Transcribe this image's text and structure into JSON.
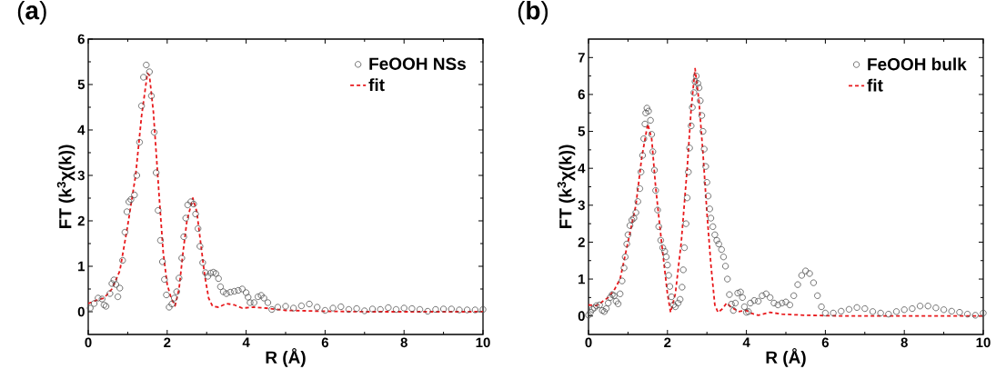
{
  "chart_data": [
    {
      "type": "scatter",
      "title": "(**a**)",
      "xlabel": "R (Å)",
      "ylabel": "FT (k$^{3}$χ(k))",
      "xlim": [
        0,
        10
      ],
      "ylim": [
        -0.5,
        6
      ],
      "xticks": [
        0,
        2,
        4,
        6,
        8,
        10
      ],
      "yticks": [
        0,
        1,
        2,
        3,
        4,
        5,
        6
      ],
      "legend": "top right",
      "series": [
        {
          "name": "FeOOH NSs",
          "marker": "circle",
          "color": "#505050",
          "x": [
            0.05,
            0.15,
            0.25,
            0.35,
            0.4,
            0.45,
            0.55,
            0.6,
            0.65,
            0.7,
            0.75,
            0.8,
            0.87,
            0.93,
            0.98,
            1.03,
            1.08,
            1.17,
            1.23,
            1.3,
            1.35,
            1.4,
            1.47,
            1.55,
            1.6,
            1.67,
            1.72,
            1.77,
            1.83,
            1.88,
            1.93,
            1.98,
            2.05,
            2.12,
            2.18,
            2.24,
            2.3,
            2.37,
            2.42,
            2.47,
            2.52,
            2.6,
            2.67,
            2.72,
            2.78,
            2.83,
            2.9,
            2.97,
            3.03,
            3.1,
            3.17,
            3.23,
            3.3,
            3.35,
            3.42,
            3.5,
            3.6,
            3.7,
            3.8,
            3.9,
            4.0,
            4.05,
            4.1,
            4.2,
            4.3,
            4.38,
            4.45,
            4.55,
            4.65,
            4.8,
            5.0,
            5.2,
            5.4,
            5.6,
            5.8,
            6.0,
            6.2,
            6.4,
            6.6,
            6.8,
            7.0,
            7.2,
            7.4,
            7.6,
            7.8,
            8.0,
            8.2,
            8.4,
            8.6,
            8.8,
            9.0,
            9.2,
            9.4,
            9.6,
            9.8,
            10.0
          ],
          "values": [
            0.08,
            0.18,
            0.3,
            0.28,
            0.15,
            0.12,
            0.4,
            0.62,
            0.7,
            0.6,
            0.33,
            0.52,
            1.13,
            1.75,
            2.2,
            2.42,
            2.47,
            2.57,
            3.0,
            3.73,
            4.53,
            5.16,
            5.43,
            5.28,
            4.75,
            3.95,
            3.06,
            2.23,
            1.57,
            1.1,
            0.71,
            0.37,
            0.1,
            0.17,
            0.3,
            0.44,
            0.74,
            1.18,
            1.65,
            2.06,
            2.35,
            2.42,
            2.37,
            2.15,
            1.83,
            1.44,
            1.08,
            0.86,
            0.78,
            0.85,
            0.87,
            0.84,
            0.73,
            0.55,
            0.44,
            0.4,
            0.43,
            0.45,
            0.47,
            0.5,
            0.42,
            0.32,
            0.2,
            0.2,
            0.33,
            0.36,
            0.3,
            0.2,
            0.05,
            0.1,
            0.12,
            0.08,
            0.13,
            0.17,
            0.1,
            0.03,
            0.08,
            0.11,
            0.05,
            0.07,
            0.02,
            0.06,
            0.05,
            0.09,
            0.05,
            0.08,
            0.07,
            0.05,
            0.01,
            0.05,
            0.06,
            0.06,
            0.04,
            0.04,
            0.04,
            0.05
          ]
        },
        {
          "name": "fit",
          "type": "line",
          "marker": "none",
          "line_style": "dashed",
          "color": "#e8191c",
          "x": [
            0,
            0.2,
            0.4,
            0.6,
            0.8,
            1.0,
            1.2,
            1.35,
            1.5,
            1.55,
            1.65,
            1.8,
            1.9,
            2.0,
            2.1,
            2.2,
            2.3,
            2.4,
            2.5,
            2.65,
            2.75,
            2.85,
            2.95,
            3.05,
            3.15,
            3.3,
            3.5,
            3.7,
            3.9,
            4.2,
            4.5,
            5.0,
            6,
            7,
            8,
            9,
            10
          ],
          "values": [
            0.18,
            0.25,
            0.3,
            0.5,
            0.9,
            1.9,
            3.0,
            4.3,
            5.25,
            5.2,
            4.4,
            2.5,
            1.3,
            0.6,
            0.3,
            0.13,
            0.5,
            1.3,
            2.0,
            2.5,
            2.2,
            1.5,
            0.8,
            0.3,
            0.12,
            0.1,
            0.18,
            0.15,
            0.08,
            0.1,
            0.08,
            0.03,
            0.01,
            0.0,
            0.0,
            0.0,
            0.0
          ]
        }
      ]
    },
    {
      "type": "scatter",
      "title": "(**b**)",
      "xlabel": "R (Å)",
      "ylabel": "FT (k$^{3}$χ(k))",
      "xlim": [
        0,
        10
      ],
      "ylim": [
        -0.5,
        7.5
      ],
      "xticks": [
        0,
        2,
        4,
        6,
        8,
        10
      ],
      "yticks": [
        0,
        1,
        2,
        3,
        4,
        5,
        6,
        7
      ],
      "legend": "top right",
      "series": [
        {
          "name": "FeOOH bulk",
          "marker": "circle",
          "color": "#505050",
          "x": [
            0.0,
            0.05,
            0.1,
            0.15,
            0.2,
            0.28,
            0.35,
            0.4,
            0.45,
            0.5,
            0.55,
            0.6,
            0.65,
            0.7,
            0.75,
            0.8,
            0.85,
            0.9,
            0.93,
            0.97,
            1.0,
            1.05,
            1.1,
            1.15,
            1.2,
            1.25,
            1.3,
            1.33,
            1.37,
            1.4,
            1.43,
            1.45,
            1.48,
            1.52,
            1.57,
            1.6,
            1.63,
            1.67,
            1.7,
            1.75,
            1.78,
            1.83,
            1.88,
            1.93,
            1.97,
            2.0,
            2.03,
            2.06,
            2.1,
            2.15,
            2.2,
            2.27,
            2.32,
            2.37,
            2.4,
            2.43,
            2.47,
            2.5,
            2.53,
            2.56,
            2.6,
            2.63,
            2.67,
            2.7,
            2.73,
            2.77,
            2.8,
            2.83,
            2.87,
            2.9,
            2.93,
            2.97,
            3.0,
            3.03,
            3.07,
            3.1,
            3.15,
            3.2,
            3.25,
            3.3,
            3.37,
            3.42,
            3.47,
            3.52,
            3.57,
            3.62,
            3.67,
            3.72,
            3.78,
            3.85,
            3.9,
            3.95,
            4.0,
            4.05,
            4.1,
            4.2,
            4.3,
            4.4,
            4.5,
            4.6,
            4.7,
            4.8,
            4.9,
            5.0,
            5.1,
            5.2,
            5.3,
            5.4,
            5.5,
            5.6,
            5.7,
            5.8,
            5.9,
            6.0,
            6.2,
            6.4,
            6.6,
            6.8,
            7.0,
            7.2,
            7.4,
            7.6,
            7.8,
            8.0,
            8.2,
            8.4,
            8.6,
            8.8,
            9.0,
            9.2,
            9.4,
            9.6,
            9.8,
            10.0
          ],
          "values": [
            0.02,
            0.1,
            0.18,
            0.22,
            0.28,
            0.3,
            0.15,
            0.12,
            0.2,
            0.35,
            0.5,
            0.58,
            0.55,
            0.4,
            0.33,
            0.6,
            0.95,
            1.3,
            1.6,
            1.95,
            2.2,
            2.45,
            2.6,
            2.65,
            2.8,
            3.1,
            3.45,
            3.9,
            4.35,
            4.8,
            5.2,
            5.5,
            5.63,
            5.55,
            5.3,
            4.92,
            4.45,
            3.95,
            3.4,
            2.87,
            2.42,
            2.05,
            1.85,
            1.75,
            1.6,
            1.38,
            1.1,
            0.8,
            0.52,
            0.3,
            0.25,
            0.35,
            0.45,
            0.78,
            1.25,
            1.85,
            2.5,
            3.2,
            3.9,
            4.55,
            5.15,
            5.65,
            6.05,
            6.35,
            6.5,
            6.3,
            6.18,
            5.83,
            5.43,
            5.0,
            4.52,
            4.05,
            3.62,
            3.25,
            2.9,
            2.65,
            2.42,
            2.2,
            2.05,
            1.95,
            1.8,
            1.6,
            1.35,
            1.0,
            0.58,
            0.32,
            0.15,
            0.35,
            0.62,
            0.65,
            0.5,
            0.25,
            0.1,
            0.12,
            0.35,
            0.42,
            0.4,
            0.55,
            0.6,
            0.5,
            0.35,
            0.3,
            0.35,
            0.38,
            0.3,
            0.55,
            0.85,
            1.1,
            1.22,
            1.15,
            0.9,
            0.55,
            0.25,
            0.08,
            0.08,
            0.13,
            0.18,
            0.23,
            0.2,
            0.12,
            0.08,
            0.05,
            0.12,
            0.17,
            0.2,
            0.27,
            0.27,
            0.22,
            0.17,
            0.13,
            0.1,
            0.05,
            0.02,
            0.08
          ]
        },
        {
          "name": "fit",
          "type": "line",
          "marker": "none",
          "line_style": "dashed",
          "color": "#e8191c",
          "x": [
            0,
            0.2,
            0.3,
            0.5,
            0.65,
            0.8,
            1.0,
            1.2,
            1.35,
            1.5,
            1.6,
            1.7,
            1.85,
            2.0,
            2.08,
            2.2,
            2.35,
            2.5,
            2.6,
            2.7,
            2.8,
            2.9,
            3.0,
            3.1,
            3.2,
            3.28,
            3.4,
            3.5,
            3.6,
            3.8,
            4.0,
            4.1,
            4.3,
            4.6,
            4.9,
            5.5,
            6.5,
            8,
            10
          ],
          "values": [
            0.3,
            0.28,
            0.35,
            0.5,
            0.7,
            1.0,
            2.0,
            3.0,
            4.3,
            5.2,
            4.8,
            3.5,
            2.0,
            0.6,
            0.1,
            0.6,
            2.0,
            4.0,
            5.6,
            6.7,
            5.8,
            4.4,
            2.8,
            1.4,
            0.3,
            0.1,
            0.2,
            0.35,
            0.25,
            0.12,
            0.15,
            0.08,
            0.02,
            0.1,
            0.05,
            0.02,
            0.0,
            0.0,
            0.0
          ]
        }
      ]
    }
  ]
}
